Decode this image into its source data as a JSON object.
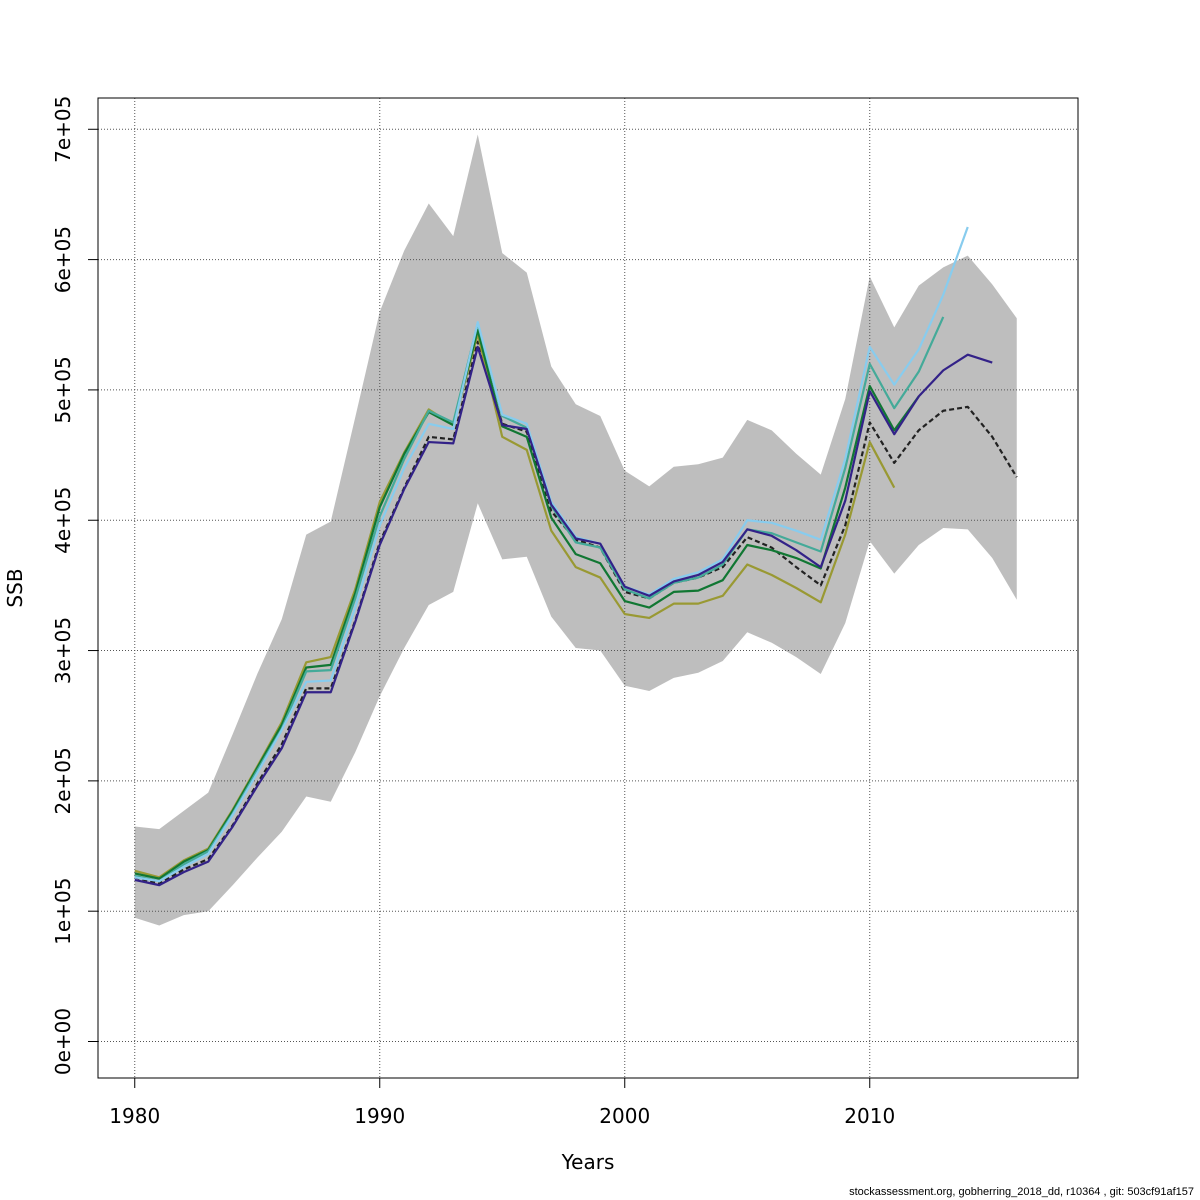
{
  "chart_data": {
    "type": "line",
    "title": "",
    "xlabel": "Years",
    "ylabel": "SSB",
    "xlim": [
      1978.5,
      2018.5
    ],
    "ylim": [
      -28000,
      724000
    ],
    "x_ticks": [
      1980,
      1990,
      2000,
      2010
    ],
    "x_tick_labels": [
      "1980",
      "1990",
      "2000",
      "2010"
    ],
    "y_ticks": [
      0,
      100000,
      200000,
      300000,
      400000,
      500000,
      600000,
      700000
    ],
    "y_tick_labels": [
      "0e+00",
      "1e+05",
      "2e+05",
      "3e+05",
      "4e+05",
      "5e+05",
      "6e+05",
      "7e+05"
    ],
    "grid": true,
    "confidence_band": {
      "color": "#bebebe",
      "x": [
        1980,
        1981,
        1982,
        1983,
        1984,
        1985,
        1986,
        1987,
        1988,
        1989,
        1990,
        1991,
        1992,
        1993,
        1994,
        1995,
        1996,
        1997,
        1998,
        1999,
        2000,
        2001,
        2002,
        2003,
        2004,
        2005,
        2006,
        2007,
        2008,
        2009,
        2010,
        2011,
        2012,
        2013,
        2014,
        2015,
        2016
      ],
      "upper": [
        165000,
        163000,
        177000,
        191000,
        236000,
        282000,
        324000,
        389000,
        399000,
        479000,
        560000,
        607000,
        643000,
        618000,
        696000,
        605000,
        590000,
        518000,
        489000,
        480000,
        438000,
        426000,
        441000,
        443000,
        448000,
        477000,
        469000,
        451000,
        435000,
        493000,
        587000,
        548000,
        580000,
        594000,
        603000,
        581000,
        555000
      ],
      "lower": [
        95000,
        89000,
        97000,
        100000,
        120000,
        141000,
        161000,
        188000,
        184000,
        222000,
        265000,
        302000,
        335000,
        345000,
        413000,
        370000,
        372000,
        326000,
        302000,
        300000,
        273000,
        269000,
        279000,
        283000,
        292000,
        314000,
        306000,
        295000,
        282000,
        321000,
        384000,
        359000,
        381000,
        394000,
        393000,
        371000,
        339000
      ]
    },
    "series": [
      {
        "color": "#222222",
        "dashed": true,
        "x": [
          1980,
          1981,
          1982,
          1983,
          1984,
          1985,
          1986,
          1987,
          1988,
          1989,
          1990,
          1991,
          1992,
          1993,
          1994,
          1995,
          1996,
          1997,
          1998,
          1999,
          2000,
          2001,
          2002,
          2003,
          2004,
          2005,
          2006,
          2007,
          2008,
          2009,
          2010,
          2011,
          2012,
          2013,
          2014,
          2015,
          2016
        ],
        "values": [
          126000,
          121000,
          132000,
          140000,
          166000,
          198000,
          228000,
          271000,
          271000,
          323000,
          383000,
          425000,
          464000,
          462000,
          537000,
          474000,
          468000,
          407000,
          385000,
          379000,
          345000,
          340000,
          352000,
          356000,
          364000,
          387000,
          379000,
          364000,
          350000,
          396000,
          475000,
          444000,
          469000,
          484000,
          487000,
          464000,
          433000
        ]
      },
      {
        "color": "#999933",
        "dashed": false,
        "x": [
          1980,
          1981,
          1982,
          1983,
          1984,
          1985,
          1986,
          1987,
          1988,
          1989,
          1990,
          1991,
          1992,
          1993,
          1994,
          1995,
          1996,
          1997,
          1998,
          1999,
          2000,
          2001,
          2002,
          2003,
          2004,
          2005,
          2006,
          2007,
          2008,
          2009,
          2010,
          2011
        ],
        "values": [
          131000,
          126000,
          139000,
          148000,
          178000,
          211000,
          245000,
          291000,
          295000,
          347000,
          414000,
          452000,
          485000,
          473000,
          543000,
          464000,
          454000,
          392000,
          364000,
          356000,
          328000,
          325000,
          336000,
          336000,
          342000,
          366000,
          358000,
          348000,
          337000,
          389000,
          460000,
          425000
        ]
      },
      {
        "color": "#117733",
        "dashed": false,
        "x": [
          1980,
          1981,
          1982,
          1983,
          1984,
          1985,
          1986,
          1987,
          1988,
          1989,
          1990,
          1991,
          1992,
          1993,
          1994,
          1995,
          1996,
          1997,
          1998,
          1999,
          2000,
          2001,
          2002,
          2003,
          2004,
          2005,
          2006,
          2007,
          2008,
          2009,
          2010,
          2011,
          2012
        ],
        "values": [
          129000,
          125000,
          138000,
          147000,
          177000,
          210000,
          243000,
          287000,
          289000,
          344000,
          410000,
          451000,
          483000,
          473000,
          546000,
          472000,
          464000,
          402000,
          374000,
          367000,
          338000,
          333000,
          345000,
          346000,
          354000,
          381000,
          377000,
          371000,
          363000,
          425000,
          503000,
          469000,
          495000
        ]
      },
      {
        "color": "#44aa99",
        "dashed": false,
        "x": [
          1980,
          1981,
          1982,
          1983,
          1984,
          1985,
          1986,
          1987,
          1988,
          1989,
          1990,
          1991,
          1992,
          1993,
          1994,
          1995,
          1996,
          1997,
          1998,
          1999,
          2000,
          2001,
          2002,
          2003,
          2004,
          2005,
          2006,
          2007,
          2008,
          2009,
          2010,
          2011,
          2012,
          2013
        ],
        "values": [
          127000,
          123000,
          136000,
          146000,
          175000,
          208000,
          240000,
          284000,
          285000,
          340000,
          403000,
          447000,
          484000,
          475000,
          551000,
          480000,
          471000,
          411000,
          383000,
          379000,
          347000,
          340000,
          352000,
          356000,
          366000,
          393000,
          390000,
          383000,
          376000,
          440000,
          520000,
          486000,
          514000,
          556000
        ]
      },
      {
        "color": "#88ccee",
        "dashed": false,
        "x": [
          1980,
          1981,
          1982,
          1983,
          1984,
          1985,
          1986,
          1987,
          1988,
          1989,
          1990,
          1991,
          1992,
          1993,
          1994,
          1995,
          1996,
          1997,
          1998,
          1999,
          2000,
          2001,
          2002,
          2003,
          2004,
          2005,
          2006,
          2007,
          2008,
          2009,
          2010,
          2011,
          2012,
          2013,
          2014
        ],
        "values": [
          126000,
          123000,
          134000,
          144000,
          174000,
          206000,
          239000,
          276000,
          277000,
          333000,
          396000,
          440000,
          474000,
          470000,
          552000,
          481000,
          474000,
          414000,
          387000,
          382000,
          349000,
          343000,
          355000,
          360000,
          370000,
          400000,
          398000,
          392000,
          385000,
          447000,
          533000,
          504000,
          531000,
          573000,
          625000
        ]
      },
      {
        "color": "#332288",
        "dashed": false,
        "x": [
          1980,
          1981,
          1982,
          1983,
          1984,
          1985,
          1986,
          1987,
          1988,
          1989,
          1990,
          1991,
          1992,
          1993,
          1994,
          1995,
          1996,
          1997,
          1998,
          1999,
          2000,
          2001,
          2002,
          2003,
          2004,
          2005,
          2006,
          2007,
          2008,
          2009,
          2010,
          2011,
          2012,
          2013,
          2014,
          2015
        ],
        "values": [
          124000,
          120000,
          130000,
          138000,
          165000,
          196000,
          225000,
          268000,
          268000,
          322000,
          381000,
          424000,
          460000,
          459000,
          533000,
          473000,
          470000,
          412000,
          386000,
          382000,
          349000,
          342000,
          353000,
          358000,
          368000,
          393000,
          388000,
          377000,
          364000,
          415000,
          499000,
          466000,
          495000,
          515000,
          527000,
          521000
        ]
      }
    ]
  },
  "footer": "stockassessment.org, gobherring_2018_dd, r10364 , git: 503cf91af157"
}
